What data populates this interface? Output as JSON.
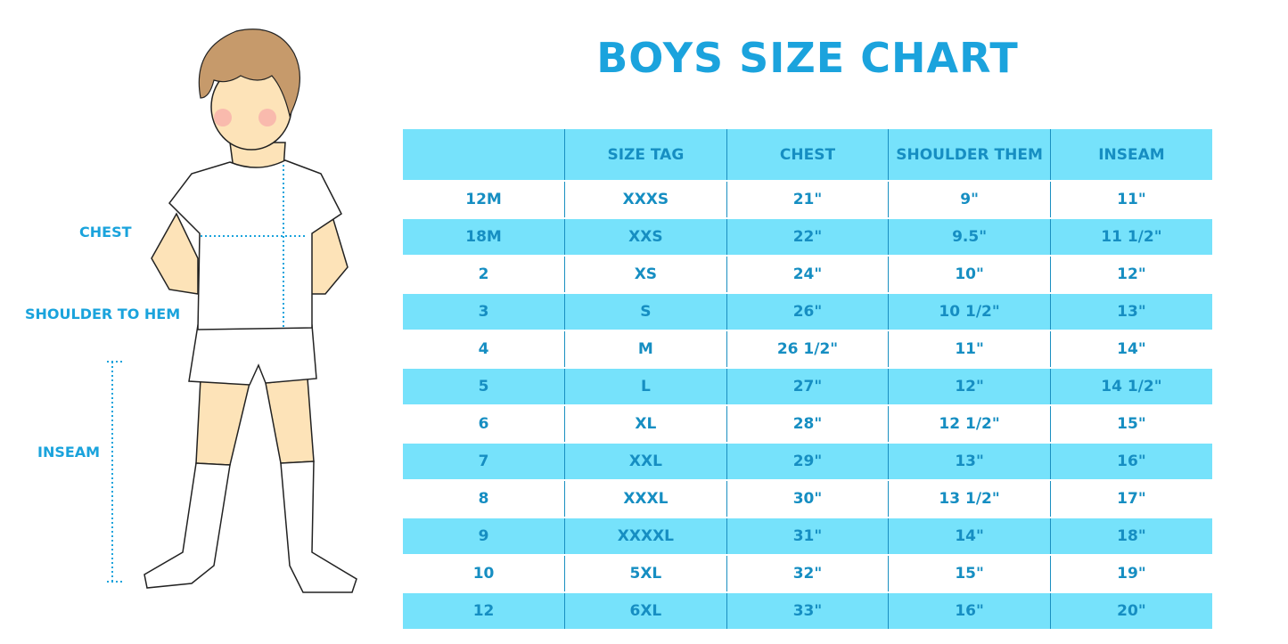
{
  "title": "BOYS SIZE CHART",
  "labels": {
    "chest": "CHEST",
    "shoulder_to_hem": "SHOULDER TO HEM",
    "inseam": "INSEAM"
  },
  "colors": {
    "accent": "#1ba3dd",
    "row_fill": "#76e2fb",
    "text": "#168ec2"
  },
  "table": {
    "headers": [
      "",
      "SIZE TAG",
      "CHEST",
      "SHOULDER THEM",
      "INSEAM"
    ],
    "rows": [
      [
        "12M",
        "XXXS",
        "21\"",
        "9\"",
        "11\""
      ],
      [
        "18M",
        "XXS",
        "22\"",
        "9.5\"",
        "11 1/2\""
      ],
      [
        "2",
        "XS",
        "24\"",
        "10\"",
        "12\""
      ],
      [
        "3",
        "S",
        "26\"",
        "10 1/2\"",
        "13\""
      ],
      [
        "4",
        "M",
        "26 1/2\"",
        "11\"",
        "14\""
      ],
      [
        "5",
        "L",
        "27\"",
        "12\"",
        "14 1/2\""
      ],
      [
        "6",
        "XL",
        "28\"",
        "12 1/2\"",
        "15\""
      ],
      [
        "7",
        "XXL",
        "29\"",
        "13\"",
        "16\""
      ],
      [
        "8",
        "XXXL",
        "30\"",
        "13 1/2\"",
        "17\""
      ],
      [
        "9",
        "XXXXL",
        "31\"",
        "14\"",
        "18\""
      ],
      [
        "10",
        "5XL",
        "32\"",
        "15\"",
        "19\""
      ],
      [
        "12",
        "6XL",
        "33\"",
        "16\"",
        "20\""
      ]
    ]
  }
}
